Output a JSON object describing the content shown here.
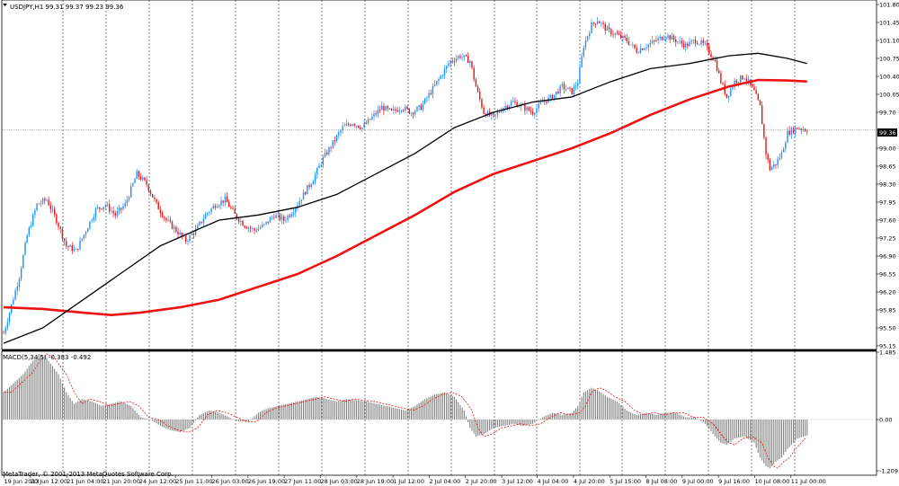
{
  "header": {
    "symbol_line": "USDJPY,H1  99.31 99.37 99.23 99.36",
    "current_price": "99.36"
  },
  "sub": {
    "indicator_label": "MACD(5,34,5) -0.383 -0.492",
    "copyright": "MetaTrader, © 2001-2013 MetaQuotes Software Corp."
  },
  "chart_data": [
    {
      "type": "candlestick",
      "title": "USDJPY,H1",
      "ohlc_last": {
        "open": 99.31,
        "high": 99.37,
        "low": 99.23,
        "close": 99.36
      },
      "ylim": [
        95.15,
        101.8
      ],
      "y_ticks": [
        "101.80",
        "101.45",
        "101.10",
        "100.75",
        "100.40",
        "100.05",
        "99.70",
        "99.36",
        "99.00",
        "98.65",
        "98.30",
        "97.95",
        "97.60",
        "97.25",
        "96.90",
        "96.55",
        "96.20",
        "95.85",
        "95.50",
        "95.15"
      ],
      "x_ticks": [
        "19 Jun 2013",
        "20 Jun 12:00",
        "21 Jun 04:00",
        "21 Jun 20:00",
        "24 Jun 12:00",
        "25 Jun 11:00",
        "26 Jun 03:00",
        "26 Jun 19:00",
        "27 Jun 11:00",
        "28 Jun 03:00",
        "28 Jun 19:00",
        "1 Jul 12:00",
        "2 Jul 04:00",
        "2 Jul 20:00",
        "3 Jul 12:00",
        "4 Jul 04:00",
        "4 Jul 20:00",
        "5 Jul 15:00",
        "8 Jul 08:00",
        "9 Jul 00:00",
        "9 Jul 16:00",
        "10 Jul 08:00",
        "11 Jul 00:00"
      ],
      "price_path": [
        [
          0,
          95.4
        ],
        [
          3,
          95.8
        ],
        [
          8,
          96.5
        ],
        [
          12,
          97.3
        ],
        [
          17,
          97.9
        ],
        [
          22,
          98.0
        ],
        [
          27,
          97.6
        ],
        [
          32,
          97.1
        ],
        [
          37,
          97.0
        ],
        [
          42,
          97.4
        ],
        [
          47,
          97.8
        ],
        [
          52,
          97.9
        ],
        [
          57,
          97.7
        ],
        [
          62,
          97.9
        ],
        [
          68,
          98.5
        ],
        [
          73,
          98.3
        ],
        [
          78,
          97.9
        ],
        [
          83,
          97.6
        ],
        [
          88,
          97.4
        ],
        [
          93,
          97.2
        ],
        [
          98,
          97.4
        ],
        [
          103,
          97.7
        ],
        [
          108,
          97.9
        ],
        [
          113,
          98.0
        ],
        [
          118,
          97.7
        ],
        [
          123,
          97.5
        ],
        [
          128,
          97.4
        ],
        [
          133,
          97.5
        ],
        [
          138,
          97.7
        ],
        [
          143,
          97.6
        ],
        [
          148,
          97.8
        ],
        [
          153,
          98.1
        ],
        [
          158,
          98.4
        ],
        [
          163,
          98.8
        ],
        [
          168,
          99.1
        ],
        [
          173,
          99.4
        ],
        [
          178,
          99.5
        ],
        [
          183,
          99.4
        ],
        [
          188,
          99.6
        ],
        [
          193,
          99.8
        ],
        [
          198,
          99.7
        ],
        [
          203,
          99.8
        ],
        [
          208,
          99.7
        ],
        [
          213,
          99.8
        ],
        [
          218,
          100.1
        ],
        [
          223,
          100.4
        ],
        [
          228,
          100.7
        ],
        [
          233,
          100.8
        ],
        [
          238,
          100.7
        ],
        [
          241,
          100.2
        ],
        [
          245,
          99.7
        ],
        [
          250,
          99.6
        ],
        [
          255,
          99.8
        ],
        [
          260,
          99.9
        ],
        [
          265,
          99.8
        ],
        [
          270,
          99.7
        ],
        [
          275,
          99.9
        ],
        [
          280,
          100.0
        ],
        [
          285,
          100.2
        ],
        [
          290,
          100.1
        ],
        [
          293,
          100.3
        ],
        [
          296,
          101.0
        ],
        [
          300,
          101.4
        ],
        [
          303,
          101.5
        ],
        [
          308,
          101.3
        ],
        [
          313,
          101.2
        ],
        [
          318,
          101.1
        ],
        [
          323,
          100.9
        ],
        [
          328,
          101.0
        ],
        [
          333,
          101.1
        ],
        [
          338,
          101.2
        ],
        [
          343,
          101.1
        ],
        [
          348,
          101.0
        ],
        [
          353,
          101.1
        ],
        [
          358,
          101.0
        ],
        [
          363,
          100.7
        ],
        [
          366,
          100.3
        ],
        [
          369,
          100.0
        ],
        [
          373,
          100.3
        ],
        [
          378,
          100.4
        ],
        [
          383,
          100.1
        ],
        [
          386,
          99.8
        ],
        [
          389,
          98.9
        ],
        [
          391,
          98.6
        ],
        [
          394,
          98.7
        ],
        [
          397,
          98.9
        ],
        [
          400,
          99.3
        ],
        [
          405,
          99.4
        ],
        [
          410,
          99.36
        ]
      ],
      "ma_black": [
        [
          0,
          95.2
        ],
        [
          20,
          95.5
        ],
        [
          50,
          96.3
        ],
        [
          80,
          97.1
        ],
        [
          110,
          97.6
        ],
        [
          130,
          97.7
        ],
        [
          150,
          97.85
        ],
        [
          170,
          98.1
        ],
        [
          190,
          98.5
        ],
        [
          210,
          98.9
        ],
        [
          230,
          99.4
        ],
        [
          250,
          99.7
        ],
        [
          270,
          99.9
        ],
        [
          290,
          100.0
        ],
        [
          310,
          100.3
        ],
        [
          330,
          100.55
        ],
        [
          350,
          100.65
        ],
        [
          370,
          100.8
        ],
        [
          385,
          100.85
        ],
        [
          400,
          100.75
        ],
        [
          410,
          100.65
        ]
      ],
      "ma_red": [
        [
          0,
          95.9
        ],
        [
          20,
          95.87
        ],
        [
          40,
          95.8
        ],
        [
          55,
          95.75
        ],
        [
          70,
          95.8
        ],
        [
          90,
          95.9
        ],
        [
          110,
          96.05
        ],
        [
          130,
          96.3
        ],
        [
          150,
          96.55
        ],
        [
          170,
          96.9
        ],
        [
          190,
          97.3
        ],
        [
          210,
          97.7
        ],
        [
          230,
          98.15
        ],
        [
          250,
          98.5
        ],
        [
          270,
          98.75
        ],
        [
          290,
          99.0
        ],
        [
          310,
          99.3
        ],
        [
          330,
          99.65
        ],
        [
          350,
          99.95
        ],
        [
          370,
          100.2
        ],
        [
          385,
          100.33
        ],
        [
          400,
          100.32
        ],
        [
          410,
          100.3
        ]
      ]
    },
    {
      "type": "bar",
      "title": "MACD(5,34,5)",
      "current_values": {
        "macd": -0.383,
        "signal": -0.492
      },
      "ylim": [
        -1.209,
        1.485
      ],
      "y_ticks": [
        "1.485",
        "0.00",
        "-1.209"
      ],
      "macd_path": [
        [
          0,
          0.6
        ],
        [
          5,
          0.8
        ],
        [
          10,
          1.0
        ],
        [
          15,
          1.3
        ],
        [
          18,
          1.45
        ],
        [
          22,
          1.35
        ],
        [
          28,
          1.0
        ],
        [
          32,
          0.6
        ],
        [
          36,
          0.35
        ],
        [
          40,
          0.45
        ],
        [
          45,
          0.4
        ],
        [
          50,
          0.3
        ],
        [
          55,
          0.35
        ],
        [
          60,
          0.4
        ],
        [
          65,
          0.3
        ],
        [
          70,
          0.05
        ],
        [
          75,
          0.0
        ],
        [
          80,
          -0.15
        ],
        [
          85,
          -0.25
        ],
        [
          90,
          -0.3
        ],
        [
          95,
          -0.2
        ],
        [
          100,
          0.1
        ],
        [
          105,
          0.2
        ],
        [
          110,
          0.15
        ],
        [
          115,
          0.05
        ],
        [
          120,
          -0.05
        ],
        [
          125,
          -0.05
        ],
        [
          130,
          0.15
        ],
        [
          135,
          0.25
        ],
        [
          140,
          0.3
        ],
        [
          145,
          0.35
        ],
        [
          150,
          0.4
        ],
        [
          155,
          0.45
        ],
        [
          160,
          0.5
        ],
        [
          165,
          0.45
        ],
        [
          170,
          0.4
        ],
        [
          175,
          0.45
        ],
        [
          180,
          0.42
        ],
        [
          185,
          0.4
        ],
        [
          190,
          0.35
        ],
        [
          195,
          0.3
        ],
        [
          200,
          0.25
        ],
        [
          205,
          0.2
        ],
        [
          210,
          0.3
        ],
        [
          215,
          0.45
        ],
        [
          220,
          0.55
        ],
        [
          225,
          0.6
        ],
        [
          230,
          0.5
        ],
        [
          235,
          0.2
        ],
        [
          238,
          -0.2
        ],
        [
          241,
          -0.4
        ],
        [
          245,
          -0.35
        ],
        [
          250,
          -0.2
        ],
        [
          255,
          -0.15
        ],
        [
          260,
          -0.1
        ],
        [
          265,
          -0.15
        ],
        [
          270,
          -0.1
        ],
        [
          275,
          0.05
        ],
        [
          280,
          0.15
        ],
        [
          285,
          0.1
        ],
        [
          290,
          0.15
        ],
        [
          293,
          0.3
        ],
        [
          296,
          0.6
        ],
        [
          300,
          0.7
        ],
        [
          303,
          0.65
        ],
        [
          308,
          0.5
        ],
        [
          313,
          0.4
        ],
        [
          318,
          0.2
        ],
        [
          323,
          0.1
        ],
        [
          328,
          0.15
        ],
        [
          333,
          0.1
        ],
        [
          338,
          0.15
        ],
        [
          343,
          0.15
        ],
        [
          348,
          0.05
        ],
        [
          353,
          0.05
        ],
        [
          358,
          -0.1
        ],
        [
          363,
          -0.4
        ],
        [
          366,
          -0.55
        ],
        [
          369,
          -0.6
        ],
        [
          373,
          -0.45
        ],
        [
          378,
          -0.4
        ],
        [
          383,
          -0.55
        ],
        [
          386,
          -0.9
        ],
        [
          389,
          -1.1
        ],
        [
          391,
          -1.15
        ],
        [
          394,
          -1.0
        ],
        [
          397,
          -0.9
        ],
        [
          400,
          -0.7
        ],
        [
          405,
          -0.45
        ],
        [
          410,
          -0.38
        ]
      ]
    }
  ]
}
